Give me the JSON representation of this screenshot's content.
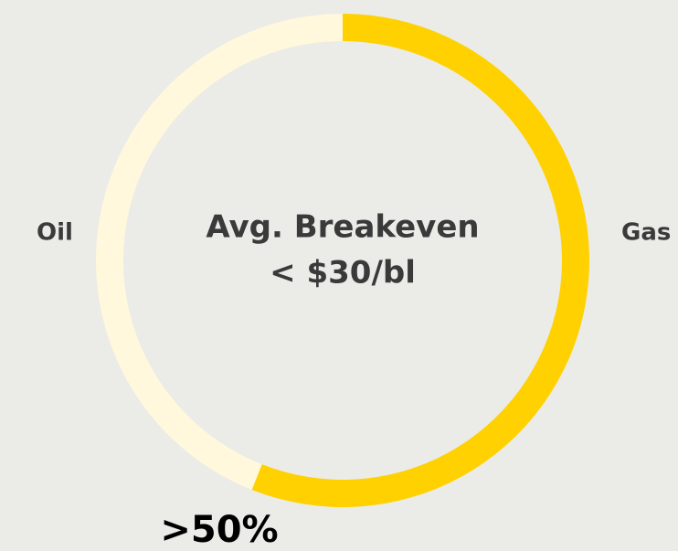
{
  "chart_data": {
    "type": "donut",
    "categories": [
      "Gas",
      "Oil"
    ],
    "values": [
      56,
      44
    ],
    "colors": [
      "#ffd100",
      "#fff8dc"
    ],
    "center_text": [
      "Avg. Breakeven",
      "< $30/bl"
    ],
    "annotation": ">50%"
  }
}
